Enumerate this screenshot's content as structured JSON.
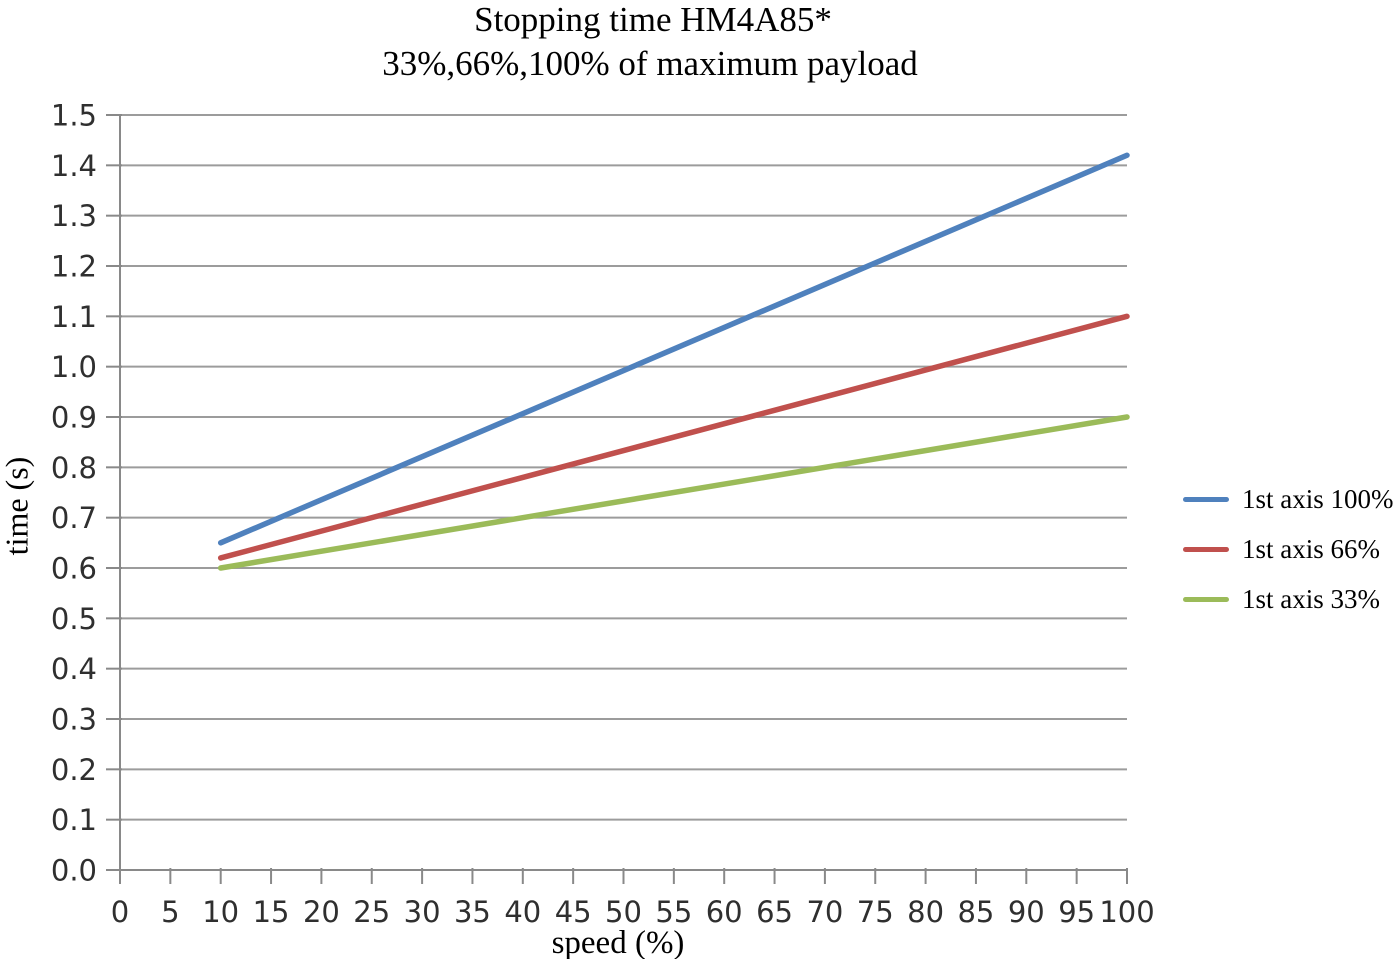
{
  "chart_data": {
    "type": "line",
    "title": "Stopping time HM4A85*",
    "subtitle": "33%,66%,100% of maximum payload",
    "xlabel": "speed (%)",
    "ylabel": "time (s)",
    "x_axis": {
      "min": 0,
      "max": 100,
      "tick_step": 5,
      "decimals": 0
    },
    "y_axis": {
      "min": 0.0,
      "max": 1.5,
      "tick_step": 0.1,
      "decimals": 1
    },
    "grid": "horizontal-only",
    "legend_position": "right",
    "series": [
      {
        "name": "1st axis 100%",
        "color": "#4F81BD",
        "points": [
          [
            10,
            0.65
          ],
          [
            100,
            1.42
          ]
        ]
      },
      {
        "name": "1st axis 66%",
        "color": "#C0504D",
        "points": [
          [
            10,
            0.62
          ],
          [
            100,
            1.1
          ]
        ]
      },
      {
        "name": "1st axis 33%",
        "color": "#9BBB59",
        "points": [
          [
            10,
            0.6
          ],
          [
            100,
            0.9
          ]
        ]
      }
    ]
  },
  "colors": {
    "gridline": "#9C9C9C",
    "axis": "#898989",
    "tick_text": "#2F2F2F",
    "title_text": "#000000",
    "background": "#FFFFFF"
  }
}
